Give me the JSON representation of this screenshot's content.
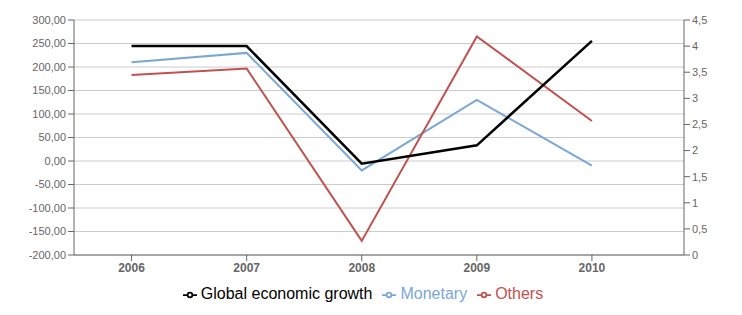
{
  "chart_data": {
    "type": "line",
    "x": [
      2006,
      2007,
      2008,
      2009,
      2010
    ],
    "xlim": [
      2005.5,
      2010.8
    ],
    "xticks": [
      2006,
      2007,
      2008,
      2009,
      2010
    ],
    "ylim": [
      -200,
      300
    ],
    "yticks": [
      {
        "value": -200,
        "label": "-200,00"
      },
      {
        "value": -150,
        "label": "-150,00"
      },
      {
        "value": -100,
        "label": "-100,00"
      },
      {
        "value": -50,
        "label": "-50,00"
      },
      {
        "value": 0,
        "label": "0,00"
      },
      {
        "value": 50,
        "label": "50,00"
      },
      {
        "value": 100,
        "label": "100,00"
      },
      {
        "value": 150,
        "label": "150,00"
      },
      {
        "value": 200,
        "label": "200,00"
      },
      {
        "value": 250,
        "label": "250,00"
      },
      {
        "value": 300,
        "label": "300,00"
      }
    ],
    "y2lim": [
      0,
      4.5
    ],
    "y2ticks": [
      0,
      {
        "value": 0.5,
        "label": "0,5"
      },
      1,
      {
        "value": 1.5,
        "label": "1,5"
      },
      2,
      {
        "value": 2.5,
        "label": "2,5"
      },
      3,
      {
        "value": 3.5,
        "label": "3,5"
      },
      4,
      {
        "value": 4.5,
        "label": "4,5"
      }
    ],
    "grid": true,
    "legend": "bottom",
    "series": [
      {
        "name": "Monetary",
        "color": "#7BA7D4",
        "values": [
          210,
          230,
          -20,
          130,
          -10
        ]
      },
      {
        "name": "Others",
        "color": "#C0514D",
        "values": [
          183,
          197,
          -170,
          265,
          85
        ]
      },
      {
        "name": "Global economic growth",
        "color": "#000000",
        "values": [
          4.0,
          4.0,
          1.75,
          2.1,
          4.1
        ],
        "axis": "y2"
      }
    ]
  }
}
